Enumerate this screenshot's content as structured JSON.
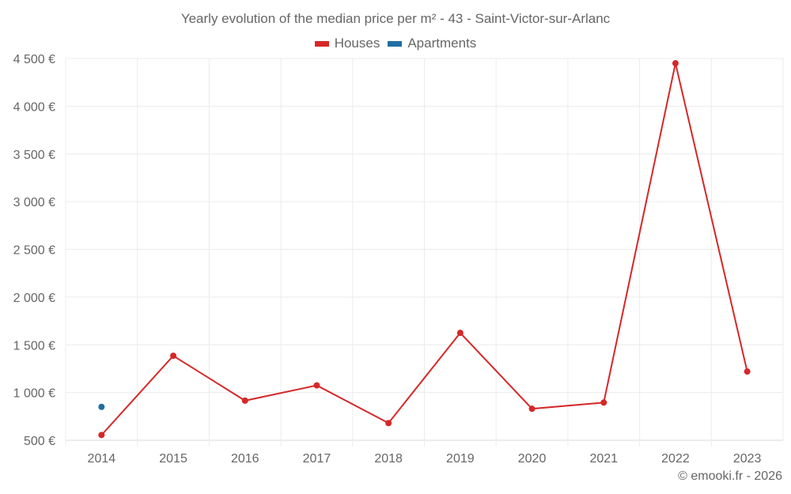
{
  "chart_data": {
    "type": "line",
    "title": "Yearly evolution of the median price per m² - 43 - Saint-Victor-sur-Arlanc",
    "xlabel": "",
    "ylabel": "",
    "categories": [
      "2014",
      "2015",
      "2016",
      "2017",
      "2018",
      "2019",
      "2020",
      "2021",
      "2022",
      "2023"
    ],
    "series": [
      {
        "name": "Houses",
        "color": "#d62728",
        "values": [
          555,
          1385,
          915,
          1075,
          680,
          1625,
          830,
          895,
          4450,
          1220
        ]
      },
      {
        "name": "Apartments",
        "color": "#1f6fa3",
        "values": [
          850,
          null,
          null,
          null,
          null,
          null,
          null,
          null,
          null,
          null
        ]
      }
    ],
    "yticks": [
      500,
      1000,
      1500,
      2000,
      2500,
      3000,
      3500,
      4000,
      4500
    ],
    "ytick_labels": [
      "500 €",
      "1 000 €",
      "1 500 €",
      "2 000 €",
      "2 500 €",
      "3 000 €",
      "3 500 €",
      "4 000 €",
      "4 500 €"
    ],
    "ylim": [
      500,
      4500
    ],
    "grid": true,
    "legend_position": "top"
  },
  "legend": {
    "houses": "Houses",
    "apartments": "Apartments"
  },
  "credit": "© emooki.fr - 2026"
}
